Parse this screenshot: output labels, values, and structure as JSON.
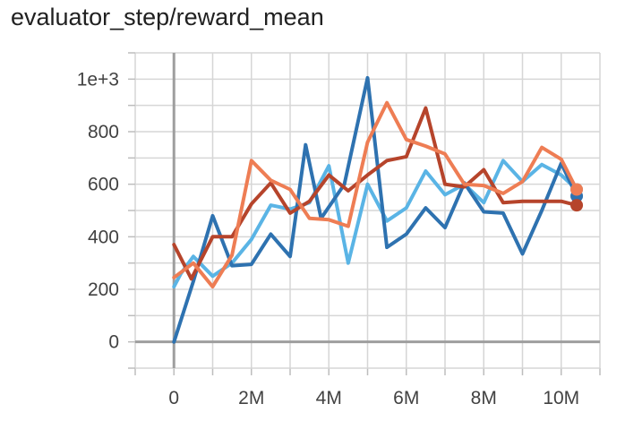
{
  "chart_data": {
    "type": "line",
    "title": "evaluator_step/reward_mean",
    "xlabel": "",
    "ylabel": "",
    "xlim": [
      -1000000,
      11000000
    ],
    "ylim": [
      -100,
      1100
    ],
    "x_ticks": [
      {
        "value": 0,
        "label": "0"
      },
      {
        "value": 2000000,
        "label": "2M"
      },
      {
        "value": 4000000,
        "label": "4M"
      },
      {
        "value": 6000000,
        "label": "6M"
      },
      {
        "value": 8000000,
        "label": "8M"
      },
      {
        "value": 10000000,
        "label": "10M"
      }
    ],
    "y_ticks": [
      {
        "value": 0,
        "label": "0"
      },
      {
        "value": 200,
        "label": "200"
      },
      {
        "value": 400,
        "label": "400"
      },
      {
        "value": 600,
        "label": "600"
      },
      {
        "value": 800,
        "label": "800"
      },
      {
        "value": 1000,
        "label": "1e+3"
      }
    ],
    "grid": true,
    "legend": "none",
    "series": [
      {
        "color": "#5ab4e5",
        "points": [
          [
            0,
            210
          ],
          [
            180000,
            260
          ],
          [
            500000,
            325
          ],
          [
            1000000,
            250
          ],
          [
            1500000,
            300
          ],
          [
            2000000,
            390
          ],
          [
            2500000,
            520
          ],
          [
            3000000,
            505
          ],
          [
            3500000,
            530
          ],
          [
            4000000,
            670
          ],
          [
            4500000,
            300
          ],
          [
            5000000,
            600
          ],
          [
            5500000,
            460
          ],
          [
            6000000,
            510
          ],
          [
            6500000,
            650
          ],
          [
            7000000,
            560
          ],
          [
            7500000,
            600
          ],
          [
            8000000,
            530
          ],
          [
            8500000,
            690
          ],
          [
            9000000,
            610
          ],
          [
            9500000,
            675
          ],
          [
            10000000,
            635
          ],
          [
            10400000,
            580
          ]
        ]
      },
      {
        "color": "#2e72b0",
        "points": [
          [
            0,
            0
          ],
          [
            500000,
            230
          ],
          [
            1000000,
            480
          ],
          [
            1500000,
            290
          ],
          [
            2000000,
            295
          ],
          [
            2500000,
            410
          ],
          [
            3000000,
            325
          ],
          [
            3400000,
            750
          ],
          [
            3800000,
            470
          ],
          [
            4400000,
            600
          ],
          [
            5000000,
            1005
          ],
          [
            5500000,
            360
          ],
          [
            6000000,
            410
          ],
          [
            6500000,
            510
          ],
          [
            7000000,
            435
          ],
          [
            7500000,
            605
          ],
          [
            8000000,
            495
          ],
          [
            8500000,
            490
          ],
          [
            9000000,
            335
          ],
          [
            9500000,
            500
          ],
          [
            10000000,
            680
          ],
          [
            10400000,
            555
          ]
        ]
      },
      {
        "color": "#b6442b",
        "points": [
          [
            0,
            370
          ],
          [
            450000,
            240
          ],
          [
            1000000,
            400
          ],
          [
            1500000,
            400
          ],
          [
            2000000,
            525
          ],
          [
            2500000,
            605
          ],
          [
            3000000,
            490
          ],
          [
            3500000,
            535
          ],
          [
            4000000,
            635
          ],
          [
            4500000,
            575
          ],
          [
            5000000,
            635
          ],
          [
            5500000,
            690
          ],
          [
            6000000,
            705
          ],
          [
            6500000,
            890
          ],
          [
            7000000,
            600
          ],
          [
            7500000,
            590
          ],
          [
            8000000,
            655
          ],
          [
            8500000,
            530
          ],
          [
            9000000,
            535
          ],
          [
            9500000,
            535
          ],
          [
            10000000,
            535
          ],
          [
            10400000,
            520
          ]
        ]
      },
      {
        "color": "#ee7d54",
        "points": [
          [
            0,
            245
          ],
          [
            500000,
            300
          ],
          [
            1000000,
            210
          ],
          [
            1500000,
            330
          ],
          [
            2000000,
            690
          ],
          [
            2500000,
            615
          ],
          [
            3000000,
            580
          ],
          [
            3500000,
            470
          ],
          [
            4000000,
            465
          ],
          [
            4500000,
            440
          ],
          [
            5000000,
            760
          ],
          [
            5500000,
            910
          ],
          [
            6000000,
            770
          ],
          [
            6500000,
            745
          ],
          [
            7000000,
            715
          ],
          [
            7500000,
            600
          ],
          [
            8000000,
            595
          ],
          [
            8500000,
            565
          ],
          [
            9000000,
            610
          ],
          [
            9500000,
            740
          ],
          [
            10000000,
            695
          ],
          [
            10400000,
            580
          ]
        ]
      }
    ]
  }
}
